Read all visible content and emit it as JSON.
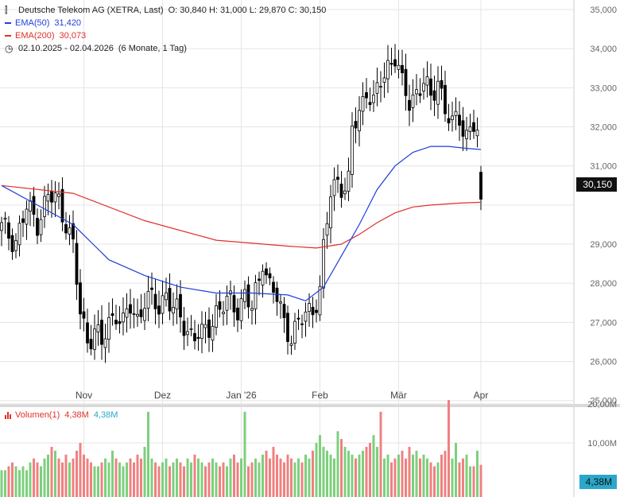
{
  "header": {
    "title": "Deutsche Telekom AG (XETRA, Last)",
    "ohlc": "O: 30,840  H: 31,000  L: 29,870  C: 30,150",
    "ema50_label": "EMA(50)",
    "ema50_value": "31,420",
    "ema200_label": "EMA(200)",
    "ema200_value": "30,073",
    "period": "02.10.2025 - 02.04.2026",
    "period_note": "(6 Monate, 1 Tag)"
  },
  "volume_legend": {
    "label": "Volumen(1)",
    "value1": "4,38M",
    "value2": "4,38M"
  },
  "price_badge": "30,150",
  "volume_badge": "4,38M",
  "colors": {
    "up": "#ffffff",
    "down": "#000000",
    "ema50": "#1f3fdc",
    "ema200": "#e0302a",
    "vol_up": "#7dd07d",
    "vol_down": "#f08080",
    "grid": "#e5e5e5"
  },
  "chart_data": {
    "type": "candlestick",
    "price_axis": {
      "ticks": [
        25000,
        26000,
        27000,
        28000,
        29000,
        30000,
        31000,
        32000,
        33000,
        34000,
        35000
      ],
      "labels": [
        "25,000",
        "26,000",
        "27,000",
        "28,000",
        "29,000",
        "",
        "31,000",
        "32,000",
        "33,000",
        "34,000",
        "35,000"
      ]
    },
    "volume_axis": {
      "ticks": [
        10,
        20
      ],
      "labels": [
        "10,00M",
        "20,00M"
      ],
      "unit": "M"
    },
    "x_labels": [
      {
        "day": 23,
        "label": "Nov"
      },
      {
        "day": 45,
        "label": "Dez"
      },
      {
        "day": 67,
        "label": "Jan '26"
      },
      {
        "day": 89,
        "label": "Feb"
      },
      {
        "day": 111,
        "label": "Mär"
      },
      {
        "day": 134,
        "label": "Apr"
      }
    ],
    "ohlc_close_anchor": [
      [
        0,
        29.4
      ],
      [
        4,
        29.1
      ],
      [
        7,
        29.9
      ],
      [
        10,
        29.6
      ],
      [
        13,
        30.2
      ],
      [
        16,
        30.1
      ],
      [
        18,
        29.6
      ],
      [
        20,
        28.9
      ],
      [
        22,
        27.2
      ],
      [
        24,
        26.6
      ],
      [
        26,
        26.8
      ],
      [
        28,
        26.4
      ],
      [
        30,
        27.0
      ],
      [
        32,
        27.3
      ],
      [
        34,
        26.9
      ],
      [
        36,
        27.4
      ],
      [
        38,
        27.1
      ],
      [
        40,
        27.6
      ],
      [
        42,
        27.5
      ],
      [
        44,
        27.4
      ],
      [
        46,
        27.8
      ],
      [
        48,
        27.3
      ],
      [
        50,
        27.1
      ],
      [
        52,
        26.8
      ],
      [
        54,
        26.7
      ],
      [
        56,
        26.6
      ],
      [
        58,
        26.9
      ],
      [
        60,
        27.3
      ],
      [
        62,
        27.4
      ],
      [
        64,
        27.5
      ],
      [
        66,
        27.4
      ],
      [
        68,
        27.7
      ],
      [
        70,
        27.3
      ],
      [
        72,
        28.1
      ],
      [
        73,
        28.7
      ],
      [
        75,
        27.9
      ],
      [
        77,
        27.6
      ],
      [
        79,
        27.0
      ],
      [
        81,
        26.7
      ],
      [
        83,
        26.9
      ],
      [
        85,
        27.2
      ],
      [
        87,
        27.4
      ],
      [
        89,
        27.8
      ],
      [
        90,
        28.8
      ],
      [
        92,
        30.3
      ],
      [
        94,
        30.7
      ],
      [
        96,
        30.4
      ],
      [
        97,
        30.5
      ],
      [
        98,
        31.9
      ],
      [
        100,
        32.4
      ],
      [
        102,
        33.0
      ],
      [
        104,
        32.5
      ],
      [
        106,
        33.2
      ],
      [
        108,
        33.6
      ],
      [
        110,
        33.8
      ],
      [
        112,
        33.0
      ],
      [
        114,
        32.7
      ],
      [
        116,
        32.9
      ],
      [
        118,
        33.1
      ],
      [
        120,
        32.7
      ],
      [
        122,
        33.3
      ],
      [
        124,
        32.4
      ],
      [
        126,
        32.0
      ],
      [
        128,
        32.3
      ],
      [
        130,
        31.8
      ],
      [
        132,
        32.0
      ],
      [
        133,
        31.8
      ],
      [
        134,
        30.15
      ]
    ],
    "ema50": [
      [
        0,
        30.5
      ],
      [
        10,
        30.0
      ],
      [
        20,
        29.5
      ],
      [
        30,
        28.6
      ],
      [
        40,
        28.2
      ],
      [
        50,
        27.9
      ],
      [
        60,
        27.75
      ],
      [
        70,
        27.75
      ],
      [
        80,
        27.7
      ],
      [
        85,
        27.55
      ],
      [
        90,
        27.9
      ],
      [
        95,
        28.7
      ],
      [
        100,
        29.5
      ],
      [
        105,
        30.4
      ],
      [
        110,
        31.0
      ],
      [
        115,
        31.35
      ],
      [
        120,
        31.5
      ],
      [
        125,
        31.5
      ],
      [
        130,
        31.45
      ],
      [
        134,
        31.42
      ]
    ],
    "ema200": [
      [
        0,
        30.5
      ],
      [
        20,
        30.3
      ],
      [
        40,
        29.6
      ],
      [
        60,
        29.1
      ],
      [
        80,
        28.95
      ],
      [
        88,
        28.9
      ],
      [
        95,
        29.0
      ],
      [
        100,
        29.25
      ],
      [
        105,
        29.55
      ],
      [
        110,
        29.8
      ],
      [
        115,
        29.95
      ],
      [
        120,
        30.0
      ],
      [
        128,
        30.05
      ],
      [
        134,
        30.07
      ]
    ],
    "volume_million": [
      3,
      3,
      4,
      5,
      4,
      3,
      4,
      3,
      5,
      6,
      5,
      4,
      6,
      7,
      9,
      8,
      6,
      5,
      7,
      5,
      6,
      8,
      10,
      7,
      6,
      5,
      4,
      4,
      5,
      6,
      5,
      8,
      6,
      5,
      4,
      5,
      6,
      5,
      7,
      6,
      9,
      18,
      6,
      5,
      4,
      5,
      6,
      4,
      5,
      6,
      5,
      4,
      6,
      5,
      7,
      6,
      5,
      4,
      5,
      6,
      5,
      4,
      5,
      4,
      6,
      7,
      5,
      6,
      18,
      4,
      5,
      6,
      5,
      7,
      8,
      6,
      9,
      7,
      6,
      5,
      7,
      6,
      5,
      6,
      5,
      7,
      6,
      8,
      10,
      12,
      9,
      8,
      7,
      6,
      13,
      11,
      9,
      8,
      7,
      6,
      7,
      8,
      9,
      10,
      12,
      9,
      18,
      6,
      7,
      5,
      6,
      7,
      8,
      6,
      9,
      7,
      8,
      6,
      7,
      6,
      5,
      4,
      5,
      7,
      8,
      21,
      6,
      10,
      5,
      6,
      7,
      4,
      4,
      8,
      4.38
    ]
  }
}
